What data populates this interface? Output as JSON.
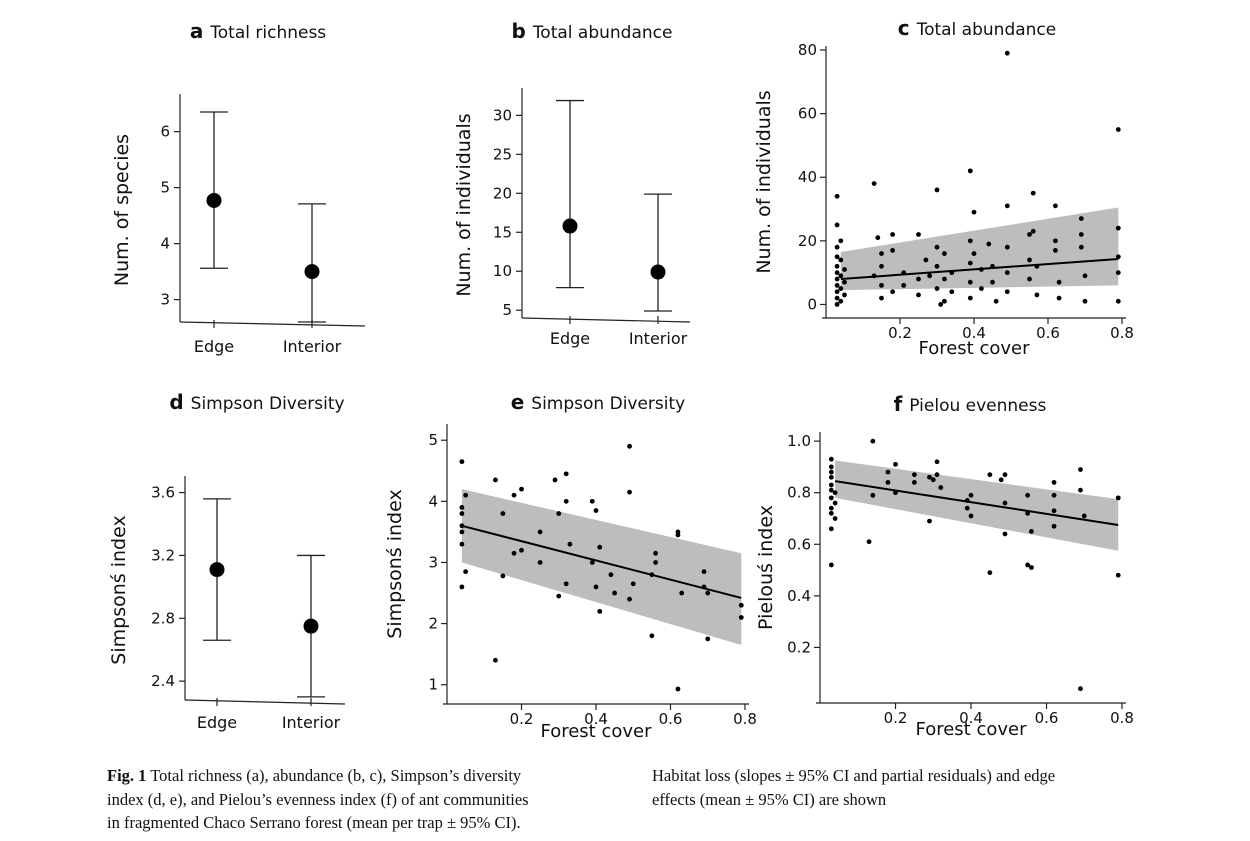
{
  "chart_data": [
    {
      "panel": "a",
      "type": "errorbar",
      "title": "Total richness",
      "ylabel": "Num. of species",
      "xlabel": "",
      "categories": [
        "Edge",
        "Interior"
      ],
      "mean": [
        4.77,
        3.5
      ],
      "ci_low": [
        3.56,
        2.6
      ],
      "ci_high": [
        6.35,
        4.71
      ],
      "ylim": [
        2.6,
        6.6
      ],
      "yticks": [
        3,
        4,
        5,
        6
      ],
      "ytick_labels": [
        "3",
        "4",
        "5",
        "6"
      ]
    },
    {
      "panel": "b",
      "type": "errorbar",
      "title": "Total abundance",
      "ylabel": "Num. of individuals",
      "xlabel": "",
      "categories": [
        "Edge",
        "Interior"
      ],
      "mean": [
        15.8,
        9.9
      ],
      "ci_low": [
        7.9,
        4.9
      ],
      "ci_high": [
        31.9,
        19.9
      ],
      "ylim": [
        4,
        33
      ],
      "yticks": [
        5,
        10,
        15,
        20,
        25,
        30
      ],
      "ytick_labels": [
        "5",
        "10",
        "15",
        "20",
        "25",
        "30"
      ]
    },
    {
      "panel": "c",
      "type": "scatter",
      "title": "Total abundance",
      "ylabel": "Num. of individuals",
      "xlabel": "Forest cover",
      "xlim": [
        0.0,
        0.8
      ],
      "ylim": [
        -3,
        80
      ],
      "xticks": [
        0.2,
        0.4,
        0.6,
        0.8
      ],
      "xtick_labels": [
        "0.2",
        "0.4",
        "0.6",
        "0.8"
      ],
      "yticks": [
        0,
        20,
        40,
        60,
        80
      ],
      "ytick_labels": [
        "0",
        "20",
        "40",
        "60",
        "80"
      ],
      "fit": {
        "x": [
          0.04,
          0.79
        ],
        "y": [
          8,
          14.3
        ]
      },
      "band": {
        "x": [
          0.04,
          0.79
        ],
        "lower": [
          4.5,
          6
        ],
        "upper": [
          16.5,
          30.5
        ]
      },
      "points": [
        [
          0.03,
          34
        ],
        [
          0.03,
          25
        ],
        [
          0.03,
          18
        ],
        [
          0.03,
          15
        ],
        [
          0.03,
          12
        ],
        [
          0.03,
          10
        ],
        [
          0.03,
          8
        ],
        [
          0.03,
          6
        ],
        [
          0.03,
          4
        ],
        [
          0.03,
          2
        ],
        [
          0.03,
          0
        ],
        [
          0.04,
          20
        ],
        [
          0.04,
          14
        ],
        [
          0.04,
          9
        ],
        [
          0.04,
          5
        ],
        [
          0.04,
          1
        ],
        [
          0.05,
          7
        ],
        [
          0.05,
          3
        ],
        [
          0.05,
          11
        ],
        [
          0.13,
          38
        ],
        [
          0.13,
          9
        ],
        [
          0.14,
          21
        ],
        [
          0.15,
          16
        ],
        [
          0.15,
          12
        ],
        [
          0.15,
          6
        ],
        [
          0.15,
          2
        ],
        [
          0.18,
          22
        ],
        [
          0.18,
          17
        ],
        [
          0.18,
          4
        ],
        [
          0.21,
          10
        ],
        [
          0.21,
          6
        ],
        [
          0.25,
          22
        ],
        [
          0.25,
          8
        ],
        [
          0.25,
          3
        ],
        [
          0.27,
          14
        ],
        [
          0.28,
          9
        ],
        [
          0.3,
          36
        ],
        [
          0.3,
          18
        ],
        [
          0.3,
          12
        ],
        [
          0.3,
          5
        ],
        [
          0.31,
          0
        ],
        [
          0.32,
          16
        ],
        [
          0.32,
          8
        ],
        [
          0.32,
          1
        ],
        [
          0.34,
          10
        ],
        [
          0.34,
          4
        ],
        [
          0.39,
          42
        ],
        [
          0.39,
          20
        ],
        [
          0.39,
          13
        ],
        [
          0.39,
          7
        ],
        [
          0.39,
          2
        ],
        [
          0.4,
          29
        ],
        [
          0.4,
          16
        ],
        [
          0.42,
          11
        ],
        [
          0.42,
          5
        ],
        [
          0.44,
          19
        ],
        [
          0.45,
          12
        ],
        [
          0.45,
          7
        ],
        [
          0.46,
          1
        ],
        [
          0.49,
          79
        ],
        [
          0.49,
          31
        ],
        [
          0.49,
          18
        ],
        [
          0.49,
          10
        ],
        [
          0.49,
          4
        ],
        [
          0.55,
          22
        ],
        [
          0.55,
          14
        ],
        [
          0.55,
          8
        ],
        [
          0.56,
          35
        ],
        [
          0.56,
          23
        ],
        [
          0.57,
          3
        ],
        [
          0.57,
          12
        ],
        [
          0.62,
          31
        ],
        [
          0.62,
          20
        ],
        [
          0.62,
          17
        ],
        [
          0.63,
          7
        ],
        [
          0.63,
          2
        ],
        [
          0.69,
          27
        ],
        [
          0.69,
          22
        ],
        [
          0.69,
          18
        ],
        [
          0.7,
          9
        ],
        [
          0.7,
          1
        ],
        [
          0.79,
          55
        ],
        [
          0.79,
          24
        ],
        [
          0.79,
          15
        ],
        [
          0.79,
          10
        ],
        [
          0.79,
          1
        ]
      ]
    },
    {
      "panel": "d",
      "type": "errorbar",
      "title": "Simpson Diversity",
      "ylabel": "Simpsonś index",
      "xlabel": "",
      "categories": [
        "Edge",
        "Interior"
      ],
      "mean": [
        3.11,
        2.75
      ],
      "ci_low": [
        2.66,
        2.3
      ],
      "ci_high": [
        3.56,
        3.2
      ],
      "ylim": [
        2.28,
        3.68
      ],
      "yticks": [
        2.4,
        2.8,
        3.2,
        3.6
      ],
      "ytick_labels": [
        "2.4",
        "2.8",
        "3.2",
        "3.6"
      ]
    },
    {
      "panel": "e",
      "type": "scatter",
      "title": "Simpson Diversity",
      "ylabel": "Simpsonś index",
      "xlabel": "Forest cover",
      "xlim": [
        0.0,
        0.8
      ],
      "ylim": [
        0.75,
        5.2
      ],
      "xticks": [
        0.2,
        0.4,
        0.6,
        0.8
      ],
      "xtick_labels": [
        "0.2",
        "0.4",
        "0.6",
        "0.8"
      ],
      "yticks": [
        1,
        2,
        3,
        4,
        5
      ],
      "ytick_labels": [
        "1",
        "2",
        "3",
        "4",
        "5"
      ],
      "fit": {
        "x": [
          0.04,
          0.79
        ],
        "y": [
          3.6,
          2.42
        ]
      },
      "band": {
        "x": [
          0.04,
          0.79
        ],
        "lower": [
          3.0,
          1.65
        ],
        "upper": [
          4.2,
          3.15
        ]
      },
      "points": [
        [
          0.04,
          4.65
        ],
        [
          0.04,
          3.9
        ],
        [
          0.04,
          3.8
        ],
        [
          0.04,
          3.6
        ],
        [
          0.04,
          3.5
        ],
        [
          0.04,
          3.3
        ],
        [
          0.04,
          2.6
        ],
        [
          0.05,
          2.85
        ],
        [
          0.05,
          4.1
        ],
        [
          0.13,
          4.35
        ],
        [
          0.13,
          1.4
        ],
        [
          0.15,
          3.8
        ],
        [
          0.15,
          2.78
        ],
        [
          0.18,
          4.1
        ],
        [
          0.18,
          3.15
        ],
        [
          0.2,
          4.2
        ],
        [
          0.2,
          3.2
        ],
        [
          0.25,
          3.5
        ],
        [
          0.25,
          3.0
        ],
        [
          0.29,
          4.35
        ],
        [
          0.3,
          3.8
        ],
        [
          0.3,
          2.45
        ],
        [
          0.32,
          4.45
        ],
        [
          0.32,
          4.0
        ],
        [
          0.32,
          2.65
        ],
        [
          0.33,
          3.3
        ],
        [
          0.39,
          4.0
        ],
        [
          0.39,
          3.0
        ],
        [
          0.4,
          3.85
        ],
        [
          0.4,
          2.6
        ],
        [
          0.41,
          2.2
        ],
        [
          0.41,
          3.25
        ],
        [
          0.44,
          2.8
        ],
        [
          0.45,
          2.5
        ],
        [
          0.49,
          4.9
        ],
        [
          0.49,
          4.15
        ],
        [
          0.5,
          2.65
        ],
        [
          0.49,
          2.4
        ],
        [
          0.55,
          1.8
        ],
        [
          0.56,
          3.15
        ],
        [
          0.56,
          3.0
        ],
        [
          0.55,
          2.8
        ],
        [
          0.62,
          3.5
        ],
        [
          0.62,
          3.45
        ],
        [
          0.62,
          0.93
        ],
        [
          0.63,
          2.5
        ],
        [
          0.69,
          2.85
        ],
        [
          0.69,
          2.6
        ],
        [
          0.7,
          1.75
        ],
        [
          0.7,
          2.5
        ],
        [
          0.79,
          2.3
        ],
        [
          0.79,
          2.1
        ]
      ]
    },
    {
      "panel": "f",
      "type": "scatter",
      "title": "Pielou evenness",
      "ylabel": "Pielouś index",
      "xlabel": "Forest cover",
      "xlim": [
        0.0,
        0.8
      ],
      "ylim": [
        0.0,
        1.02
      ],
      "xticks": [
        0.2,
        0.4,
        0.6,
        0.8
      ],
      "xtick_labels": [
        "0.2",
        "0.4",
        "0.6",
        "0.8"
      ],
      "yticks": [
        0.2,
        0.4,
        0.6,
        0.8,
        1.0
      ],
      "ytick_labels": [
        "0.2",
        "0.4",
        "0.6",
        "0.8",
        "1.0"
      ],
      "fit": {
        "x": [
          0.04,
          0.79
        ],
        "y": [
          0.845,
          0.675
        ]
      },
      "band": {
        "x": [
          0.04,
          0.79
        ],
        "lower": [
          0.78,
          0.575
        ],
        "upper": [
          0.925,
          0.775
        ]
      },
      "points": [
        [
          0.03,
          0.93
        ],
        [
          0.03,
          0.9
        ],
        [
          0.03,
          0.88
        ],
        [
          0.03,
          0.86
        ],
        [
          0.03,
          0.83
        ],
        [
          0.03,
          0.81
        ],
        [
          0.03,
          0.78
        ],
        [
          0.03,
          0.74
        ],
        [
          0.03,
          0.72
        ],
        [
          0.03,
          0.66
        ],
        [
          0.03,
          0.52
        ],
        [
          0.04,
          0.8
        ],
        [
          0.04,
          0.76
        ],
        [
          0.04,
          0.7
        ],
        [
          0.13,
          0.61
        ],
        [
          0.14,
          1.0
        ],
        [
          0.14,
          0.79
        ],
        [
          0.18,
          0.88
        ],
        [
          0.18,
          0.84
        ],
        [
          0.2,
          0.91
        ],
        [
          0.2,
          0.8
        ],
        [
          0.25,
          0.87
        ],
        [
          0.25,
          0.84
        ],
        [
          0.29,
          0.86
        ],
        [
          0.29,
          0.69
        ],
        [
          0.3,
          0.85
        ],
        [
          0.31,
          0.92
        ],
        [
          0.31,
          0.87
        ],
        [
          0.32,
          0.82
        ],
        [
          0.39,
          0.77
        ],
        [
          0.39,
          0.74
        ],
        [
          0.4,
          0.71
        ],
        [
          0.4,
          0.79
        ],
        [
          0.45,
          0.87
        ],
        [
          0.45,
          0.49
        ],
        [
          0.48,
          0.85
        ],
        [
          0.49,
          0.87
        ],
        [
          0.49,
          0.76
        ],
        [
          0.49,
          0.64
        ],
        [
          0.55,
          0.79
        ],
        [
          0.55,
          0.72
        ],
        [
          0.55,
          0.52
        ],
        [
          0.56,
          0.51
        ],
        [
          0.56,
          0.65
        ],
        [
          0.62,
          0.84
        ],
        [
          0.62,
          0.79
        ],
        [
          0.62,
          0.73
        ],
        [
          0.62,
          0.67
        ],
        [
          0.69,
          0.89
        ],
        [
          0.69,
          0.81
        ],
        [
          0.7,
          0.71
        ],
        [
          0.69,
          0.04
        ],
        [
          0.79,
          0.78
        ],
        [
          0.79,
          0.48
        ]
      ]
    }
  ],
  "caption": {
    "left_lines": [
      "Fig. 1   Total richness (a), abundance (b, c), Simpson’s diversity",
      "index (d, e), and Pielou’s evenness index (f) of ant communities",
      "in fragmented Chaco Serrano forest (mean per trap ± 95% CI)."
    ],
    "right_lines": [
      "Habitat loss (slopes ± 95% CI and partial residuals) and edge",
      "effects (mean ± 95% CI) are shown"
    ]
  }
}
